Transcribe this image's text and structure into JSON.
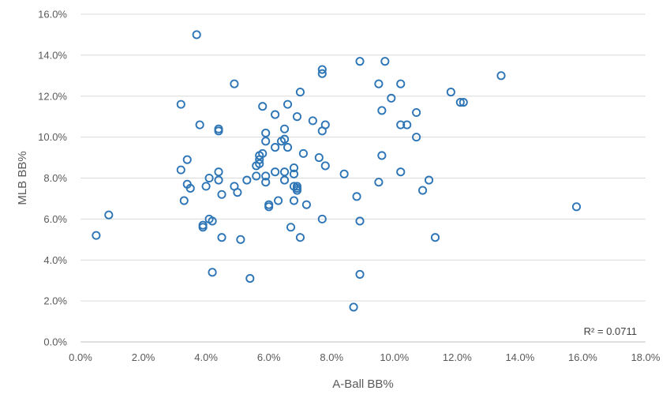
{
  "chart_data": {
    "type": "scatter",
    "title": "",
    "xlabel": "A-Ball BB%",
    "ylabel": "MLB BB%",
    "xlim": [
      0,
      0.18
    ],
    "ylim": [
      0,
      0.16
    ],
    "x_ticks": [
      0,
      0.02,
      0.04,
      0.06,
      0.08,
      0.1,
      0.12,
      0.14,
      0.16,
      0.18
    ],
    "y_ticks": [
      0,
      0.02,
      0.04,
      0.06,
      0.08,
      0.1,
      0.12,
      0.14,
      0.16
    ],
    "x_tick_labels": [
      "0.0%",
      "2.0%",
      "4.0%",
      "6.0%",
      "8.0%",
      "10.0%",
      "12.0%",
      "14.0%",
      "16.0%",
      "18.0%"
    ],
    "y_tick_labels": [
      "0.0%",
      "2.0%",
      "4.0%",
      "6.0%",
      "8.0%",
      "10.0%",
      "12.0%",
      "14.0%",
      "16.0%"
    ],
    "grid": "horizontal",
    "marker": "hollow-circle",
    "marker_color": "#2E75B6",
    "annotation": "R² = 0.0711",
    "points": [
      [
        0.005,
        0.052
      ],
      [
        0.009,
        0.062
      ],
      [
        0.032,
        0.084
      ],
      [
        0.032,
        0.116
      ],
      [
        0.033,
        0.069
      ],
      [
        0.034,
        0.077
      ],
      [
        0.034,
        0.089
      ],
      [
        0.035,
        0.075
      ],
      [
        0.037,
        0.15
      ],
      [
        0.038,
        0.106
      ],
      [
        0.039,
        0.056
      ],
      [
        0.039,
        0.057
      ],
      [
        0.04,
        0.076
      ],
      [
        0.041,
        0.08
      ],
      [
        0.041,
        0.06
      ],
      [
        0.042,
        0.059
      ],
      [
        0.042,
        0.034
      ],
      [
        0.044,
        0.104
      ],
      [
        0.044,
        0.103
      ],
      [
        0.044,
        0.083
      ],
      [
        0.044,
        0.079
      ],
      [
        0.045,
        0.072
      ],
      [
        0.045,
        0.051
      ],
      [
        0.049,
        0.126
      ],
      [
        0.049,
        0.076
      ],
      [
        0.05,
        0.073
      ],
      [
        0.051,
        0.05
      ],
      [
        0.053,
        0.079
      ],
      [
        0.054,
        0.031
      ],
      [
        0.056,
        0.086
      ],
      [
        0.056,
        0.081
      ],
      [
        0.057,
        0.087
      ],
      [
        0.057,
        0.089
      ],
      [
        0.057,
        0.091
      ],
      [
        0.058,
        0.115
      ],
      [
        0.058,
        0.092
      ],
      [
        0.059,
        0.102
      ],
      [
        0.059,
        0.098
      ],
      [
        0.059,
        0.081
      ],
      [
        0.059,
        0.078
      ],
      [
        0.06,
        0.067
      ],
      [
        0.06,
        0.066
      ],
      [
        0.062,
        0.111
      ],
      [
        0.062,
        0.095
      ],
      [
        0.062,
        0.083
      ],
      [
        0.063,
        0.069
      ],
      [
        0.064,
        0.098
      ],
      [
        0.065,
        0.099
      ],
      [
        0.065,
        0.104
      ],
      [
        0.065,
        0.083
      ],
      [
        0.065,
        0.079
      ],
      [
        0.066,
        0.095
      ],
      [
        0.066,
        0.116
      ],
      [
        0.067,
        0.056
      ],
      [
        0.068,
        0.085
      ],
      [
        0.068,
        0.082
      ],
      [
        0.068,
        0.076
      ],
      [
        0.068,
        0.069
      ],
      [
        0.069,
        0.074
      ],
      [
        0.069,
        0.11
      ],
      [
        0.069,
        0.076
      ],
      [
        0.069,
        0.075
      ],
      [
        0.07,
        0.122
      ],
      [
        0.07,
        0.051
      ],
      [
        0.071,
        0.092
      ],
      [
        0.072,
        0.067
      ],
      [
        0.074,
        0.108
      ],
      [
        0.076,
        0.09
      ],
      [
        0.077,
        0.06
      ],
      [
        0.077,
        0.103
      ],
      [
        0.077,
        0.133
      ],
      [
        0.077,
        0.131
      ],
      [
        0.078,
        0.086
      ],
      [
        0.078,
        0.106
      ],
      [
        0.084,
        0.082
      ],
      [
        0.087,
        0.017
      ],
      [
        0.088,
        0.071
      ],
      [
        0.089,
        0.059
      ],
      [
        0.089,
        0.033
      ],
      [
        0.089,
        0.137
      ],
      [
        0.095,
        0.126
      ],
      [
        0.095,
        0.078
      ],
      [
        0.096,
        0.113
      ],
      [
        0.096,
        0.091
      ],
      [
        0.097,
        0.137
      ],
      [
        0.099,
        0.119
      ],
      [
        0.102,
        0.083
      ],
      [
        0.102,
        0.126
      ],
      [
        0.102,
        0.106
      ],
      [
        0.104,
        0.106
      ],
      [
        0.107,
        0.1
      ],
      [
        0.107,
        0.112
      ],
      [
        0.109,
        0.074
      ],
      [
        0.111,
        0.079
      ],
      [
        0.113,
        0.051
      ],
      [
        0.118,
        0.122
      ],
      [
        0.121,
        0.117
      ],
      [
        0.122,
        0.117
      ],
      [
        0.134,
        0.13
      ],
      [
        0.158,
        0.066
      ]
    ]
  }
}
